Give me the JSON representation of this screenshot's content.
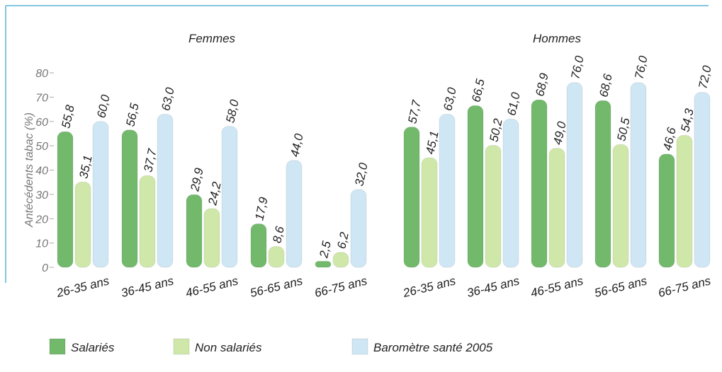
{
  "chart_data": {
    "type": "bar",
    "ylabel": "Antécédents tabac (%)",
    "ylim": [
      0,
      80
    ],
    "yticks": [
      0,
      10,
      20,
      30,
      40,
      50,
      60,
      70,
      80
    ],
    "categories": [
      "26-35 ans",
      "36-45 ans",
      "46-55 ans",
      "56-65 ans",
      "66-75 ans"
    ],
    "series": [
      {
        "name": "Salariés",
        "color": "#72b96c"
      },
      {
        "name": "Non salariés",
        "color": "#cfe8aa"
      },
      {
        "name": "Baromètre santé 2005",
        "color": "#cfe7f4"
      }
    ],
    "panels": [
      {
        "title": "Femmes",
        "series": [
          {
            "values": [
              55.8,
              56.5,
              29.9,
              17.9,
              2.5
            ],
            "value_labels": [
              "55,8",
              "56,5",
              "29,9",
              "17,9",
              "2,5"
            ]
          },
          {
            "values": [
              35.1,
              37.7,
              24.2,
              8.6,
              6.2
            ],
            "value_labels": [
              "35,1",
              "37,7",
              "24,2",
              "8,6",
              "6,2"
            ]
          },
          {
            "values": [
              60.0,
              63.0,
              58.0,
              44.0,
              32.0
            ],
            "value_labels": [
              "60,0",
              "63,0",
              "58,0",
              "44,0",
              "32,0"
            ]
          }
        ]
      },
      {
        "title": "Hommes",
        "series": [
          {
            "values": [
              57.7,
              66.5,
              68.9,
              68.6,
              46.6
            ],
            "value_labels": [
              "57,7",
              "66,5",
              "68,9",
              "68,6",
              "46,6"
            ]
          },
          {
            "values": [
              45.1,
              50.2,
              49.0,
              50.5,
              54.3
            ],
            "value_labels": [
              "45,1",
              "50,2",
              "49,0",
              "50,5",
              "54,3"
            ]
          },
          {
            "values": [
              63.0,
              61.0,
              76.0,
              76.0,
              72.0
            ],
            "value_labels": [
              "63,0",
              "61,0",
              "76,0",
              "76,0",
              "72,0"
            ]
          }
        ]
      }
    ]
  }
}
